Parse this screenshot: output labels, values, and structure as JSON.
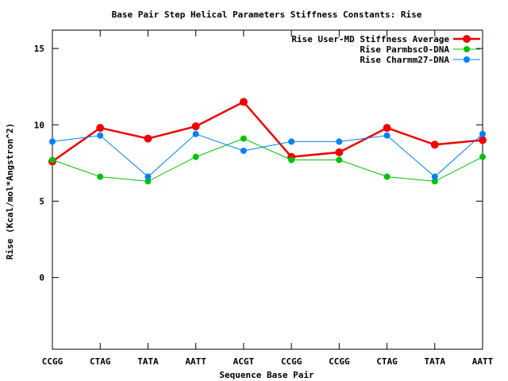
{
  "chart_data": {
    "type": "line",
    "title": "Base Pair Step Helical Parameters Stiffness Constants: Rise",
    "xlabel": "Sequence Base Pair",
    "ylabel": "Rise (Kcal/mol*Angstron^2)",
    "categories": [
      "CCGG",
      "CTAG",
      "TATA",
      "AATT",
      "ACGT",
      "CCGG",
      "CCGG",
      "CTAG",
      "TATA",
      "AATT"
    ],
    "ylim": [
      -4.7,
      16.2
    ],
    "yticks": [
      0,
      5,
      10,
      15
    ],
    "grid": false,
    "legend_position": "top-right",
    "series": [
      {
        "name": "Rise User-MD Stiffness Average",
        "color": "#ee0000",
        "values": [
          7.6,
          9.8,
          9.1,
          9.9,
          11.5,
          7.9,
          8.2,
          9.8,
          8.7,
          9.0
        ]
      },
      {
        "name": "Rise Parmbsc0-DNA",
        "color": "#00c000",
        "values": [
          7.7,
          6.6,
          6.3,
          7.9,
          9.1,
          7.7,
          7.7,
          6.6,
          6.3,
          7.9
        ]
      },
      {
        "name": "Rise Charmm27-DNA",
        "color": "#0080ff",
        "values": [
          8.9,
          9.3,
          6.6,
          9.4,
          8.3,
          8.9,
          8.9,
          9.3,
          6.6,
          9.4
        ]
      }
    ]
  }
}
